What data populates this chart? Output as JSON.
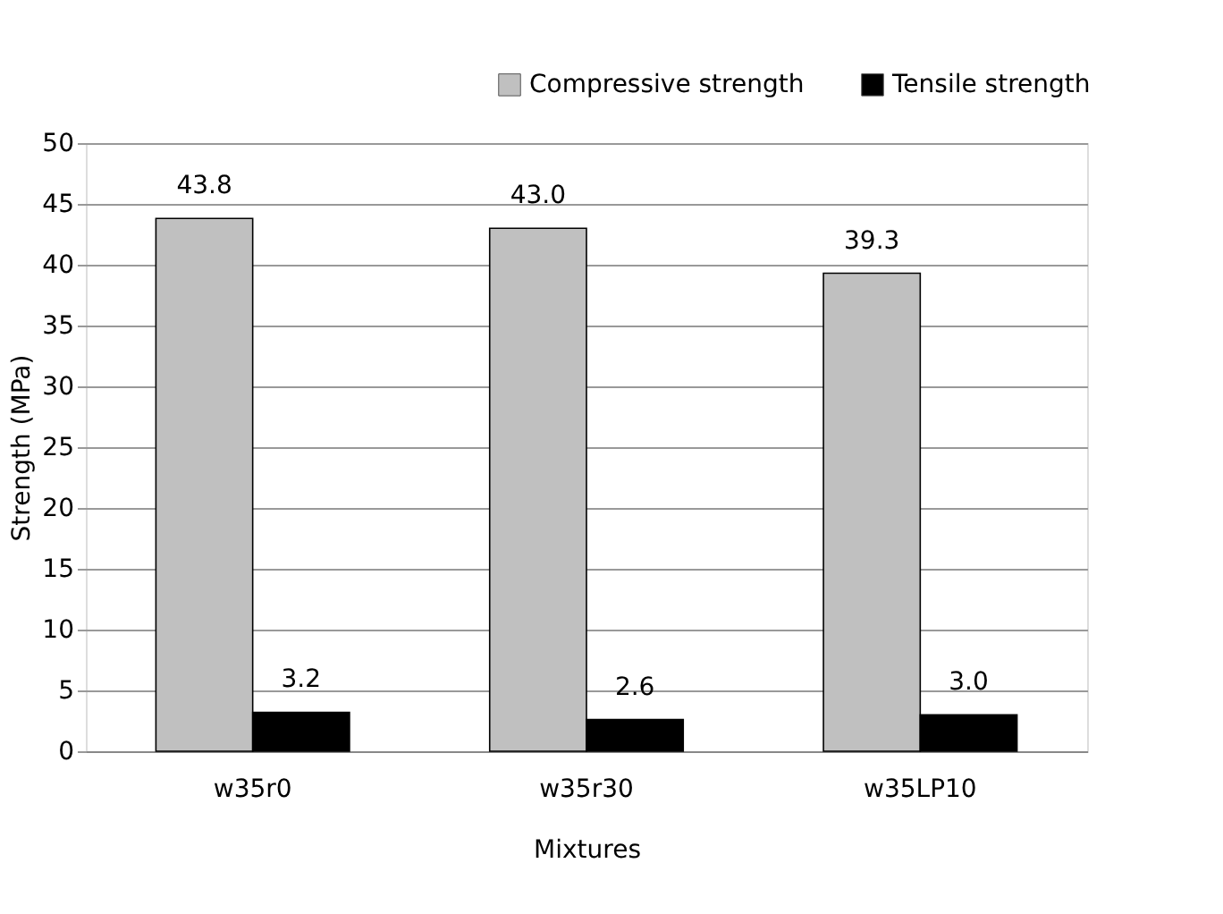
{
  "chart_data": {
    "type": "bar",
    "xlabel": "Mixtures",
    "ylabel": "Strength (MPa)",
    "categories": [
      "w35r0",
      "w35r30",
      "w35LP10"
    ],
    "series": [
      {
        "name": "Compressive strength",
        "color": "#c0c0c0",
        "values": [
          43.8,
          43.0,
          39.3
        ],
        "value_labels": [
          "43.8",
          "43.0",
          "39.3"
        ]
      },
      {
        "name": "Tensile strength",
        "color": "#000000",
        "values": [
          3.2,
          2.6,
          3.0
        ],
        "value_labels": [
          "3.2",
          "2.6",
          "3.0"
        ]
      }
    ],
    "ylim": [
      0,
      50
    ],
    "yticks": [
      0,
      5,
      10,
      15,
      20,
      25,
      30,
      35,
      40,
      45,
      50
    ],
    "grid": "y",
    "legend": "top right"
  }
}
